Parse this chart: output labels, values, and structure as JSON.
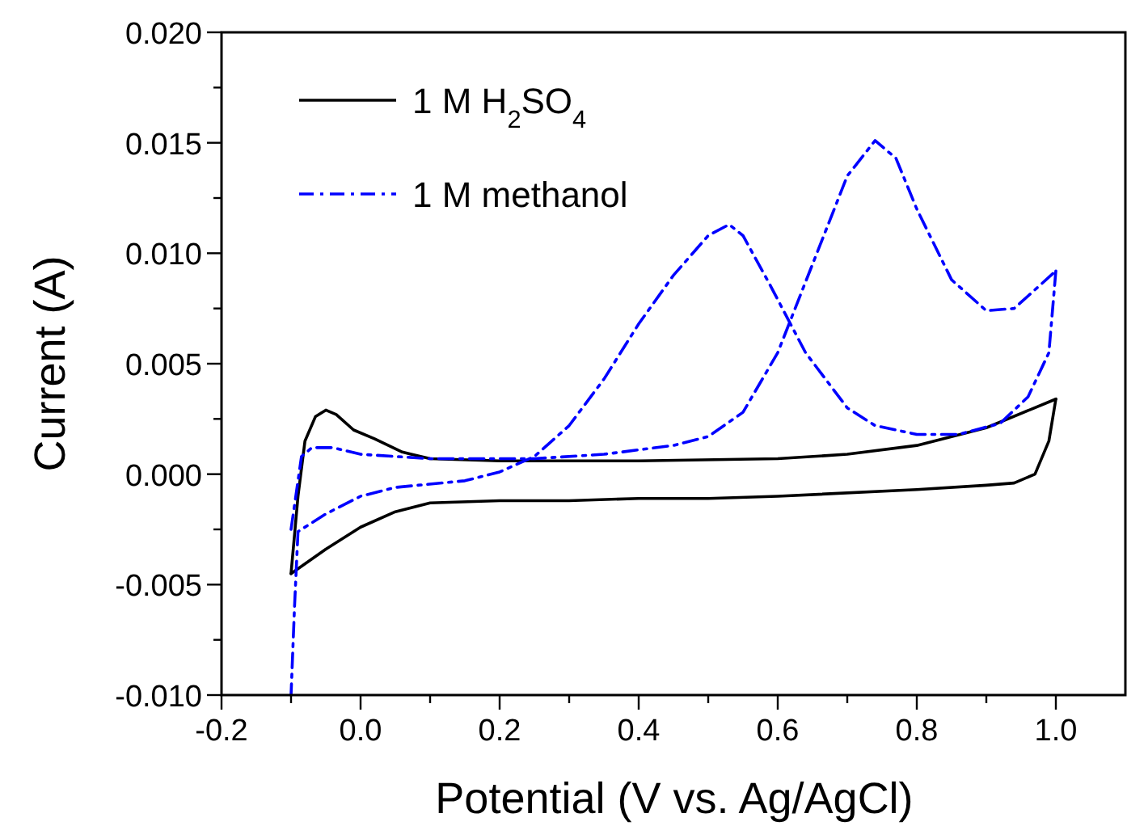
{
  "chart_data": {
    "type": "line",
    "xlabel": "Potential (V vs. Ag/AgCl)",
    "ylabel": "Current (A)",
    "xlim": [
      -0.2,
      1.1
    ],
    "ylim": [
      -0.01,
      0.02
    ],
    "xticks": [
      {
        "value": -0.2,
        "label": "-0.2"
      },
      {
        "value": -0.1,
        "label": null
      },
      {
        "value": 0,
        "label": "0.0"
      },
      {
        "value": 0.1,
        "label": null
      },
      {
        "value": 0.2,
        "label": "0.2"
      },
      {
        "value": 0.3,
        "label": null
      },
      {
        "value": 0.4,
        "label": "0.4"
      },
      {
        "value": 0.5,
        "label": null
      },
      {
        "value": 0.6,
        "label": "0.6"
      },
      {
        "value": 0.7,
        "label": null
      },
      {
        "value": 0.8,
        "label": "0.8"
      },
      {
        "value": 0.9,
        "label": null
      },
      {
        "value": 1.0,
        "label": "1.0"
      }
    ],
    "yticks": [
      {
        "value": -0.01,
        "label": "-0.010"
      },
      {
        "value": -0.0075,
        "label": null
      },
      {
        "value": -0.005,
        "label": "-0.005"
      },
      {
        "value": -0.0025,
        "label": null
      },
      {
        "value": 0,
        "label": "0.000"
      },
      {
        "value": 0.0025,
        "label": null
      },
      {
        "value": 0.005,
        "label": "0.005"
      },
      {
        "value": 0.0075,
        "label": null
      },
      {
        "value": 0.01,
        "label": "0.010"
      },
      {
        "value": 0.0125,
        "label": null
      },
      {
        "value": 0.015,
        "label": "0.015"
      },
      {
        "value": 0.0175,
        "label": null
      },
      {
        "value": 0.02,
        "label": "0.020"
      }
    ],
    "legend": "top left",
    "grid": false,
    "marker": "none",
    "series": [
      {
        "name": "1 M H$_{2}$SO$_{4}$",
        "color": "#000000",
        "line_style": "solid",
        "x": [
          -0.1,
          -0.09,
          -0.08,
          -0.065,
          -0.05,
          -0.035,
          -0.01,
          0.02,
          0.06,
          0.1,
          0.2,
          0.4,
          0.6,
          0.7,
          0.8,
          0.9,
          1.0
        ],
        "values": [
          -0.0045,
          -0.001,
          0.0015,
          0.0026,
          0.0029,
          0.0027,
          0.002,
          0.0016,
          0.001,
          0.0007,
          0.0006,
          0.0006,
          0.0007,
          0.0009,
          0.0013,
          0.0021,
          0.0034
        ]
      },
      {
        "color": "#000000",
        "line_style": "solid",
        "x": [
          1.0,
          0.99,
          0.97,
          0.94,
          0.9,
          0.8,
          0.6,
          0.5,
          0.4,
          0.3,
          0.2,
          0.1,
          0.05,
          0.0,
          -0.05,
          -0.1
        ],
        "values": [
          0.0034,
          0.0015,
          0.0,
          -0.0004,
          -0.0005,
          -0.0007,
          -0.001,
          -0.0011,
          -0.0011,
          -0.0012,
          -0.0012,
          -0.0013,
          -0.0017,
          -0.0024,
          -0.0034,
          -0.0045
        ]
      },
      {
        "name": "1 M methanol",
        "color": "#0000ff",
        "line_style": "dashdot",
        "x": [
          -0.1,
          -0.085,
          -0.07,
          -0.04,
          0.0,
          0.1,
          0.25,
          0.35,
          0.45,
          0.5,
          0.55,
          0.6,
          0.65,
          0.7,
          0.74,
          0.77,
          0.8,
          0.85,
          0.9,
          0.94,
          1.0
        ],
        "values": [
          -0.0025,
          0.0008,
          0.0012,
          0.0012,
          0.0009,
          0.0007,
          0.0007,
          0.0009,
          0.0013,
          0.0017,
          0.0028,
          0.0055,
          0.0095,
          0.0135,
          0.0151,
          0.0143,
          0.012,
          0.0088,
          0.0074,
          0.0075,
          0.0092
        ]
      },
      {
        "color": "#0000ff",
        "line_style": "dashdot",
        "x": [
          1.0,
          0.99,
          0.96,
          0.92,
          0.86,
          0.8,
          0.74,
          0.7,
          0.64,
          0.59,
          0.55,
          0.53,
          0.5,
          0.45,
          0.4,
          0.35,
          0.3,
          0.25,
          0.2,
          0.15,
          0.05,
          0.0,
          -0.05,
          -0.09,
          -0.095,
          -0.1
        ],
        "values": [
          0.0092,
          0.0055,
          0.0035,
          0.0023,
          0.0018,
          0.0018,
          0.0022,
          0.003,
          0.0055,
          0.0085,
          0.0108,
          0.0113,
          0.0108,
          0.009,
          0.0068,
          0.0043,
          0.0022,
          0.0008,
          0.0001,
          -0.0003,
          -0.0006,
          -0.001,
          -0.0018,
          -0.0026,
          -0.006,
          -0.01
        ]
      }
    ]
  }
}
